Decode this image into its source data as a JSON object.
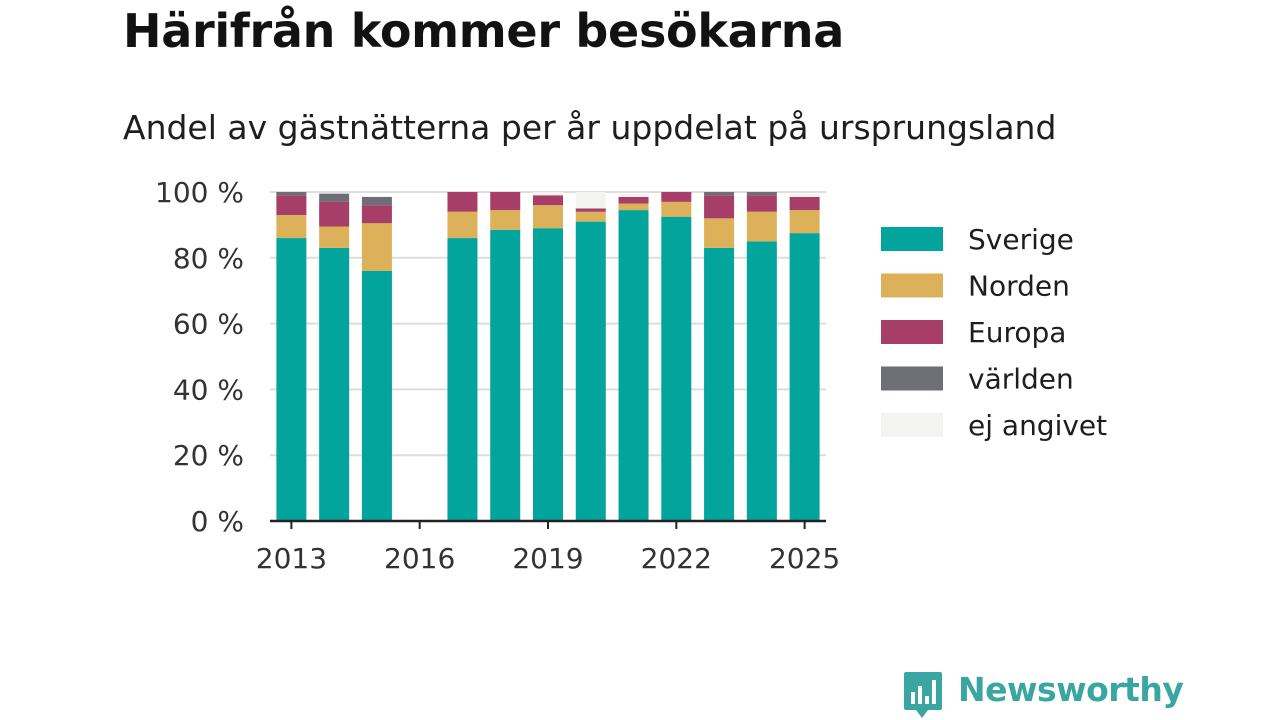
{
  "title": "Härifrån kommer besökarna",
  "subtitle": "Andel av gästnätterna per år uppdelat på ursprungsland",
  "brand": {
    "name": "Newsworthy"
  },
  "chart_data": {
    "type": "bar",
    "stacked": true,
    "x": [
      2013,
      2014,
      2015,
      2017,
      2018,
      2019,
      2020,
      2021,
      2022,
      2023,
      2024,
      2025
    ],
    "xticks": [
      2013,
      2016,
      2019,
      2022,
      2025
    ],
    "xlim": [
      2012.5,
      2025.5
    ],
    "ylim": [
      0,
      100
    ],
    "yticks": [
      0,
      20,
      40,
      60,
      80,
      100
    ],
    "ytick_labels": [
      "0 %",
      "20 %",
      "40 %",
      "60 %",
      "80 %",
      "100 %"
    ],
    "grid": true,
    "legend_position": "right",
    "series": [
      {
        "name": "Sverige",
        "color": "#02a49c",
        "values": [
          86,
          83,
          76,
          86,
          88.5,
          89,
          91,
          94.5,
          92.5,
          83,
          85,
          87.5
        ]
      },
      {
        "name": "Norden",
        "color": "#dcb15a",
        "values": [
          7,
          6.5,
          14.5,
          8,
          6,
          7,
          3,
          2,
          4.5,
          9,
          9,
          7
        ]
      },
      {
        "name": "Europa",
        "color": "#a73e68",
        "values": [
          6,
          7.5,
          5.5,
          6,
          5.5,
          3,
          1,
          2,
          3,
          7,
          5,
          4
        ]
      },
      {
        "name": "världen",
        "color": "#6d6e76",
        "values": [
          1,
          2.5,
          2.5,
          0,
          0,
          0,
          0,
          0,
          0,
          1,
          1,
          0
        ]
      },
      {
        "name": "ej angivet",
        "color": "#f3f3f2",
        "values": [
          0,
          0,
          0,
          0,
          0,
          1,
          5,
          1,
          0,
          0,
          0,
          1
        ]
      }
    ]
  }
}
